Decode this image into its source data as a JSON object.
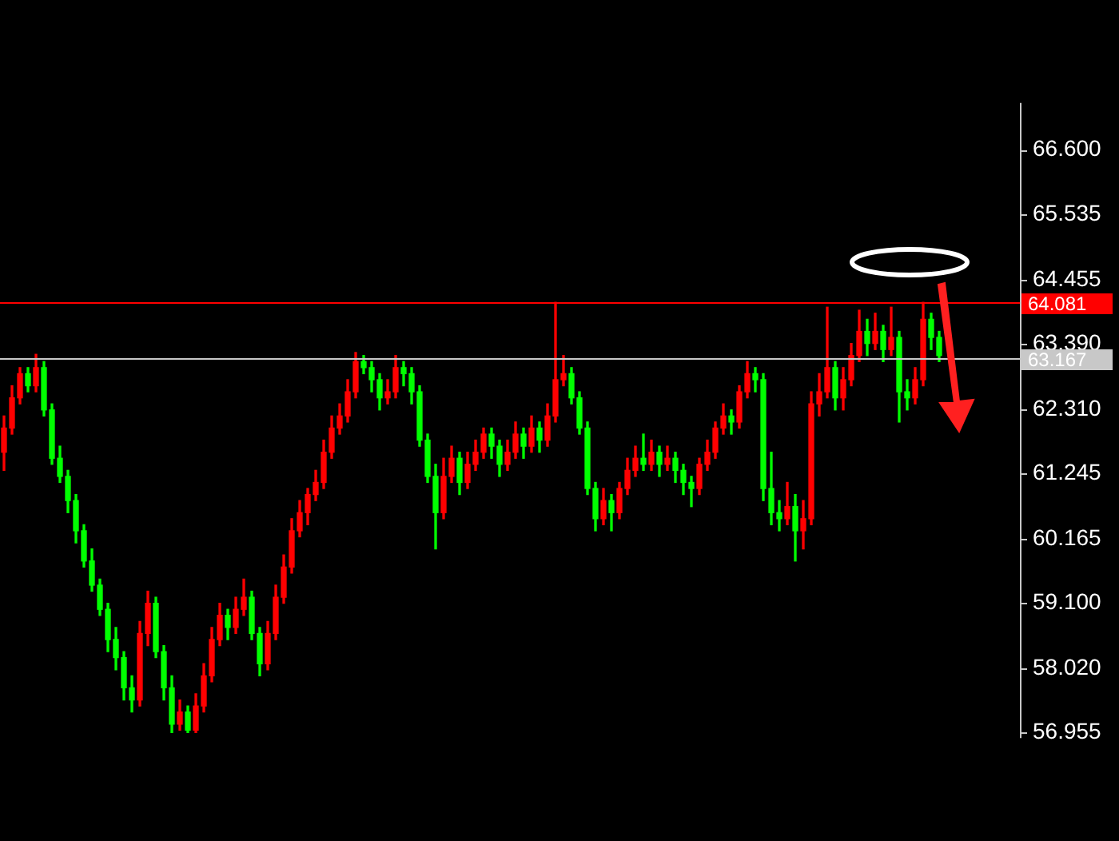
{
  "chart_data": {
    "type": "candlestick",
    "categories": [
      null,
      null,
      null,
      null,
      null,
      null,
      null,
      null,
      null,
      null,
      null,
      null,
      null,
      null,
      null,
      null,
      null,
      null,
      null,
      null,
      null,
      null,
      null,
      null,
      null,
      null,
      null,
      null,
      null,
      null,
      null,
      null,
      null,
      null,
      null,
      null,
      null,
      null,
      null,
      null,
      null,
      null,
      null,
      null,
      null,
      null,
      null,
      null,
      null,
      null,
      null,
      null,
      null,
      null,
      null,
      null,
      null,
      null,
      null,
      null,
      null,
      null,
      null,
      null,
      null,
      null,
      null,
      null,
      null,
      null,
      null,
      null,
      null,
      null,
      null,
      null,
      null,
      null,
      null,
      null,
      null,
      null,
      null,
      null,
      null,
      null,
      null,
      null,
      null,
      null,
      null,
      null,
      null,
      null,
      null,
      null,
      null,
      null,
      null,
      null,
      null,
      null,
      null,
      null,
      null,
      null,
      null,
      null,
      null,
      null,
      null,
      null,
      null,
      null,
      null,
      null,
      null,
      null
    ],
    "ohlc": [
      [
        61.6,
        62.2,
        61.3,
        62.0
      ],
      [
        62.0,
        62.7,
        61.9,
        62.5
      ],
      [
        62.5,
        63.0,
        62.4,
        62.9
      ],
      [
        62.9,
        63.0,
        62.6,
        62.7
      ],
      [
        62.7,
        63.22,
        62.6,
        63.0
      ],
      [
        63.0,
        63.1,
        62.2,
        62.3
      ],
      [
        62.3,
        62.4,
        61.4,
        61.5
      ],
      [
        61.5,
        61.7,
        61.1,
        61.2
      ],
      [
        61.2,
        61.3,
        60.6,
        60.8
      ],
      [
        60.8,
        60.9,
        60.1,
        60.3
      ],
      [
        60.3,
        60.4,
        59.7,
        59.8
      ],
      [
        59.8,
        60.0,
        59.3,
        59.4
      ],
      [
        59.4,
        59.5,
        58.9,
        59.0
      ],
      [
        59.0,
        59.1,
        58.3,
        58.5
      ],
      [
        58.5,
        58.7,
        58.0,
        58.2
      ],
      [
        58.2,
        58.3,
        57.5,
        57.7
      ],
      [
        57.7,
        57.9,
        57.3,
        57.5
      ],
      [
        57.5,
        58.8,
        57.4,
        58.6
      ],
      [
        58.6,
        59.3,
        58.4,
        59.1
      ],
      [
        59.1,
        59.2,
        58.2,
        58.3
      ],
      [
        58.3,
        58.4,
        57.5,
        57.7
      ],
      [
        57.7,
        57.9,
        56.96,
        57.1
      ],
      [
        57.1,
        57.5,
        57.0,
        57.3
      ],
      [
        57.3,
        57.4,
        56.96,
        57.0
      ],
      [
        57.0,
        57.6,
        56.96,
        57.4
      ],
      [
        57.4,
        58.1,
        57.3,
        57.9
      ],
      [
        57.9,
        58.7,
        57.8,
        58.5
      ],
      [
        58.5,
        59.1,
        58.4,
        58.9
      ],
      [
        58.9,
        59.0,
        58.5,
        58.7
      ],
      [
        58.7,
        59.2,
        58.6,
        59.0
      ],
      [
        59.0,
        59.5,
        58.9,
        59.2
      ],
      [
        59.2,
        59.3,
        58.5,
        58.6
      ],
      [
        58.6,
        58.7,
        57.9,
        58.1
      ],
      [
        58.1,
        58.8,
        58.0,
        58.6
      ],
      [
        58.6,
        59.4,
        58.5,
        59.2
      ],
      [
        59.2,
        59.9,
        59.1,
        59.7
      ],
      [
        59.7,
        60.5,
        59.6,
        60.3
      ],
      [
        60.3,
        60.8,
        60.2,
        60.6
      ],
      [
        60.6,
        61.0,
        60.4,
        60.9
      ],
      [
        60.9,
        61.3,
        60.8,
        61.1
      ],
      [
        61.1,
        61.8,
        61.0,
        61.6
      ],
      [
        61.6,
        62.2,
        61.5,
        62.0
      ],
      [
        62.0,
        62.4,
        61.9,
        62.2
      ],
      [
        62.2,
        62.8,
        62.1,
        62.6
      ],
      [
        62.6,
        63.25,
        62.5,
        63.1
      ],
      [
        63.1,
        63.2,
        62.9,
        63.0
      ],
      [
        63.0,
        63.1,
        62.6,
        62.8
      ],
      [
        62.8,
        62.9,
        62.3,
        62.5
      ],
      [
        62.5,
        62.8,
        62.4,
        62.6
      ],
      [
        62.6,
        63.2,
        62.5,
        63.0
      ],
      [
        63.0,
        63.1,
        62.7,
        62.9
      ],
      [
        62.9,
        63.0,
        62.4,
        62.6
      ],
      [
        62.6,
        62.7,
        61.7,
        61.8
      ],
      [
        61.8,
        61.9,
        61.1,
        61.2
      ],
      [
        61.2,
        61.4,
        60.0,
        60.6
      ],
      [
        60.6,
        61.5,
        60.5,
        61.2
      ],
      [
        61.2,
        61.7,
        61.1,
        61.5
      ],
      [
        61.5,
        61.6,
        60.9,
        61.1
      ],
      [
        61.1,
        61.6,
        61.0,
        61.4
      ],
      [
        61.4,
        61.8,
        61.3,
        61.6
      ],
      [
        61.6,
        62.0,
        61.5,
        61.9
      ],
      [
        61.9,
        62.0,
        61.5,
        61.7
      ],
      [
        61.7,
        61.8,
        61.2,
        61.4
      ],
      [
        61.4,
        61.8,
        61.3,
        61.6
      ],
      [
        61.6,
        62.1,
        61.5,
        61.9
      ],
      [
        61.9,
        62.0,
        61.5,
        61.7
      ],
      [
        61.7,
        62.2,
        61.6,
        62.0
      ],
      [
        62.0,
        62.1,
        61.6,
        61.8
      ],
      [
        61.8,
        62.4,
        61.7,
        62.2
      ],
      [
        62.2,
        64.08,
        62.1,
        62.8
      ],
      [
        62.8,
        63.2,
        62.7,
        62.9
      ],
      [
        62.9,
        63.0,
        62.4,
        62.5
      ],
      [
        62.5,
        62.6,
        61.9,
        62.0
      ],
      [
        62.0,
        62.1,
        60.9,
        61.0
      ],
      [
        61.0,
        61.1,
        60.3,
        60.5
      ],
      [
        60.5,
        61.0,
        60.4,
        60.8
      ],
      [
        60.8,
        60.9,
        60.3,
        60.6
      ],
      [
        60.6,
        61.1,
        60.5,
        61.0
      ],
      [
        61.0,
        61.5,
        60.9,
        61.3
      ],
      [
        61.3,
        61.7,
        61.2,
        61.5
      ],
      [
        61.5,
        61.9,
        61.3,
        61.4
      ],
      [
        61.4,
        61.8,
        61.3,
        61.6
      ],
      [
        61.6,
        61.7,
        61.2,
        61.4
      ],
      [
        61.4,
        61.7,
        61.3,
        61.5
      ],
      [
        61.5,
        61.6,
        61.1,
        61.3
      ],
      [
        61.3,
        61.4,
        60.9,
        61.1
      ],
      [
        61.1,
        61.2,
        60.7,
        61.0
      ],
      [
        61.0,
        61.5,
        60.9,
        61.4
      ],
      [
        61.4,
        61.8,
        61.3,
        61.6
      ],
      [
        61.6,
        62.1,
        61.5,
        62.0
      ],
      [
        62.0,
        62.4,
        61.9,
        62.2
      ],
      [
        62.2,
        62.3,
        61.9,
        62.1
      ],
      [
        62.1,
        62.7,
        62.0,
        62.6
      ],
      [
        62.6,
        63.1,
        62.5,
        62.9
      ],
      [
        62.9,
        63.0,
        62.6,
        62.8
      ],
      [
        62.8,
        62.9,
        60.8,
        61.0
      ],
      [
        61.0,
        61.6,
        60.4,
        60.6
      ],
      [
        60.6,
        60.8,
        60.3,
        60.5
      ],
      [
        60.5,
        61.1,
        60.4,
        60.7
      ],
      [
        60.7,
        60.9,
        59.8,
        60.3
      ],
      [
        60.3,
        60.8,
        60.0,
        60.5
      ],
      [
        60.5,
        62.6,
        60.4,
        62.4
      ],
      [
        62.4,
        62.9,
        62.2,
        62.6
      ],
      [
        62.6,
        64.0,
        62.5,
        63.0
      ],
      [
        63.0,
        63.1,
        62.3,
        62.5
      ],
      [
        62.5,
        63.0,
        62.3,
        62.8
      ],
      [
        62.8,
        63.4,
        62.7,
        63.2
      ],
      [
        63.2,
        63.95,
        63.1,
        63.6
      ],
      [
        63.6,
        63.8,
        63.2,
        63.4
      ],
      [
        63.4,
        63.9,
        63.3,
        63.6
      ],
      [
        63.6,
        63.7,
        63.1,
        63.3
      ],
      [
        63.3,
        64.0,
        63.2,
        63.5
      ],
      [
        63.5,
        63.6,
        62.1,
        62.6
      ],
      [
        62.6,
        62.8,
        62.3,
        62.5
      ],
      [
        62.5,
        63.0,
        62.4,
        62.8
      ],
      [
        62.8,
        64.08,
        62.7,
        63.8
      ],
      [
        63.8,
        63.9,
        63.3,
        63.5
      ],
      [
        63.5,
        63.6,
        63.1,
        63.2
      ]
    ],
    "colors": [
      "#ff0000",
      "#ff0000",
      "#ff0000",
      "#00ff00",
      "#ff0000",
      "#00ff00",
      "#00ff00",
      "#00ff00",
      "#00ff00",
      "#00ff00",
      "#00ff00",
      "#00ff00",
      "#00ff00",
      "#00ff00",
      "#00ff00",
      "#00ff00",
      "#00ff00",
      "#ff0000",
      "#ff0000",
      "#00ff00",
      "#00ff00",
      "#00ff00",
      "#ff0000",
      "#00ff00",
      "#ff0000",
      "#ff0000",
      "#ff0000",
      "#ff0000",
      "#00ff00",
      "#ff0000",
      "#ff0000",
      "#00ff00",
      "#00ff00",
      "#ff0000",
      "#ff0000",
      "#ff0000",
      "#ff0000",
      "#ff0000",
      "#ff0000",
      "#ff0000",
      "#ff0000",
      "#ff0000",
      "#ff0000",
      "#ff0000",
      "#ff0000",
      "#00ff00",
      "#00ff00",
      "#00ff00",
      "#ff0000",
      "#ff0000",
      "#00ff00",
      "#00ff00",
      "#00ff00",
      "#00ff00",
      "#00ff00",
      "#ff0000",
      "#ff0000",
      "#00ff00",
      "#ff0000",
      "#ff0000",
      "#ff0000",
      "#00ff00",
      "#00ff00",
      "#ff0000",
      "#ff0000",
      "#00ff00",
      "#ff0000",
      "#00ff00",
      "#ff0000",
      "#ff0000",
      "#ff0000",
      "#00ff00",
      "#00ff00",
      "#00ff00",
      "#00ff00",
      "#ff0000",
      "#00ff00",
      "#ff0000",
      "#ff0000",
      "#ff0000",
      "#00ff00",
      "#ff0000",
      "#00ff00",
      "#ff0000",
      "#00ff00",
      "#00ff00",
      "#00ff00",
      "#ff0000",
      "#ff0000",
      "#ff0000",
      "#ff0000",
      "#00ff00",
      "#ff0000",
      "#ff0000",
      "#00ff00",
      "#00ff00",
      "#00ff00",
      "#00ff00",
      "#ff0000",
      "#00ff00",
      "#ff0000",
      "#ff0000",
      "#ff0000",
      "#ff0000",
      "#00ff00",
      "#ff0000",
      "#ff0000",
      "#ff0000",
      "#00ff00",
      "#ff0000",
      "#00ff00",
      "#ff0000",
      "#00ff00",
      "#00ff00",
      "#ff0000",
      "#ff0000",
      "#00ff00",
      "#00ff00"
    ],
    "ylim": [
      56.87,
      67.38
    ],
    "yticks": [
      {
        "value": 66.6,
        "label": "66.600"
      },
      65.535,
      64.455,
      {
        "value": 63.39,
        "label": "63.390"
      },
      {
        "value": 62.31,
        "label": "62.310"
      },
      61.245,
      60.165,
      {
        "value": 59.1,
        "label": "59.100"
      },
      {
        "value": 58.02,
        "label": "58.020"
      },
      56.955
    ],
    "ref_lines": [
      {
        "axis": "y",
        "value": 64.081,
        "label": "64.081",
        "color": "#ff0000"
      },
      {
        "axis": "y",
        "value": 63.167,
        "label": "63.167",
        "color": "#c8c8c8"
      }
    ],
    "tick_labels": "y",
    "grid": false,
    "legend": false
  }
}
